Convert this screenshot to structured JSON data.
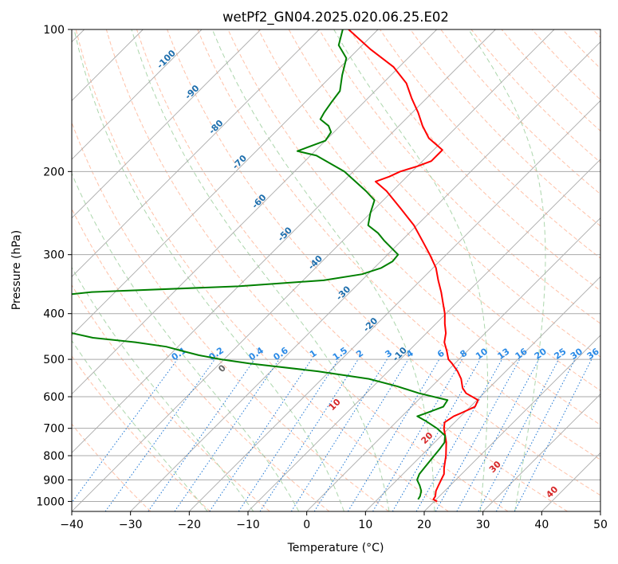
{
  "chart_data": {
    "type": "line",
    "subtype": "skew-t log-p diagram",
    "title": "wetPf2_GN04.2025.020.06.25.E02",
    "xlabel": "Temperature (°C)",
    "ylabel": "Pressure (hPa)",
    "xlim": [
      -40,
      50
    ],
    "ylim": [
      1050,
      100
    ],
    "yscale": "log",
    "x_ticks": [
      "−40",
      "−30",
      "−20",
      "−10",
      "0",
      "10",
      "20",
      "30",
      "40",
      "50"
    ],
    "x_tick_values": [
      -40,
      -30,
      -20,
      -10,
      0,
      10,
      20,
      30,
      40,
      50
    ],
    "y_ticks": [
      "1000",
      "900",
      "800",
      "700",
      "600",
      "500",
      "400",
      "300",
      "200",
      "100"
    ],
    "y_tick_values": [
      1000,
      900,
      800,
      700,
      600,
      500,
      400,
      300,
      200,
      100
    ],
    "grid": true,
    "colors": {
      "temperature": "#ff0000",
      "dewpoint": "#008000",
      "isotherm": "#aaaaaa",
      "dry_adiabat": "#ffa07a",
      "moist_adiabat": "#90c890",
      "mixing_ratio": "#1f77d4",
      "temp_label": "#1f6fad",
      "mixing_label": "#2a8ae6",
      "wetbulb_label": "#d62728",
      "zero_label": "#666666",
      "dry_curve": "#d8c0a8"
    },
    "series": [
      {
        "kind": "temperature",
        "points": [
          [
            1000,
            20.5
          ],
          [
            990,
            19.5
          ],
          [
            975,
            19.3
          ],
          [
            950,
            18.5
          ],
          [
            925,
            18.0
          ],
          [
            900,
            17.5
          ],
          [
            875,
            17.0
          ],
          [
            850,
            16.0
          ],
          [
            800,
            14.2
          ],
          [
            750,
            12.0
          ],
          [
            700,
            9.2
          ],
          [
            680,
            8.3
          ],
          [
            660,
            8.8
          ],
          [
            650,
            9.5
          ],
          [
            630,
            10.8
          ],
          [
            610,
            10.2
          ],
          [
            590,
            7.0
          ],
          [
            575,
            5.5
          ],
          [
            550,
            3.7
          ],
          [
            530,
            1.8
          ],
          [
            510,
            -0.5
          ],
          [
            500,
            -1.8
          ],
          [
            480,
            -3.5
          ],
          [
            460,
            -5.4
          ],
          [
            440,
            -6.7
          ],
          [
            420,
            -8.5
          ],
          [
            400,
            -10.2
          ],
          [
            380,
            -12.3
          ],
          [
            360,
            -14.5
          ],
          [
            340,
            -17.0
          ],
          [
            320,
            -19.5
          ],
          [
            300,
            -22.8
          ],
          [
            280,
            -26.5
          ],
          [
            260,
            -30.5
          ],
          [
            240,
            -35.5
          ],
          [
            220,
            -41.0
          ],
          [
            210,
            -44.5
          ],
          [
            205,
            -43.0
          ],
          [
            200,
            -42.0
          ],
          [
            195,
            -40.0
          ],
          [
            190,
            -38.5
          ],
          [
            180,
            -38.5
          ],
          [
            170,
            -42.8
          ],
          [
            160,
            -46.0
          ],
          [
            150,
            -49.0
          ],
          [
            140,
            -52.5
          ],
          [
            130,
            -56.0
          ],
          [
            120,
            -61.0
          ],
          [
            110,
            -68.0
          ],
          [
            100,
            -75.0
          ]
        ]
      },
      {
        "kind": "dewpoint",
        "points": [
          [
            990,
            16.9
          ],
          [
            975,
            16.7
          ],
          [
            950,
            16.0
          ],
          [
            925,
            14.8
          ],
          [
            900,
            13.4
          ],
          [
            875,
            12.8
          ],
          [
            850,
            12.6
          ],
          [
            800,
            12.2
          ],
          [
            775,
            12.0
          ],
          [
            750,
            11.7
          ],
          [
            725,
            10.6
          ],
          [
            700,
            8.0
          ],
          [
            675,
            4.8
          ],
          [
            660,
            2.6
          ],
          [
            650,
            3.6
          ],
          [
            630,
            5.4
          ],
          [
            610,
            5.0
          ],
          [
            590,
            -1.0
          ],
          [
            570,
            -6.0
          ],
          [
            550,
            -12.0
          ],
          [
            530,
            -22.0
          ],
          [
            510,
            -35.0
          ],
          [
            500,
            -40.5
          ],
          [
            490,
            -45.0
          ],
          [
            480,
            -48.5
          ],
          [
            470,
            -52.0
          ],
          [
            460,
            -58.0
          ],
          [
            450,
            -66.0
          ],
          [
            440,
            -70.3
          ],
          [
            420,
            -74.5
          ],
          [
            400,
            -77.5
          ],
          [
            380,
            -79.0
          ],
          [
            365,
            -78.0
          ],
          [
            360,
            -74.0
          ],
          [
            350,
            -50.0
          ],
          [
            340,
            -36.5
          ],
          [
            330,
            -31.0
          ],
          [
            320,
            -28.8
          ],
          [
            310,
            -28.0
          ],
          [
            300,
            -28.2
          ],
          [
            280,
            -33.0
          ],
          [
            270,
            -35.3
          ],
          [
            260,
            -38.3
          ],
          [
            245,
            -40.0
          ],
          [
            230,
            -41.5
          ],
          [
            220,
            -44.5
          ],
          [
            200,
            -51.5
          ],
          [
            185,
            -59.0
          ],
          [
            181,
            -63.0
          ],
          [
            178,
            -62.0
          ],
          [
            172,
            -60.0
          ],
          [
            165,
            -60.5
          ],
          [
            160,
            -62.0
          ],
          [
            155,
            -64.5
          ],
          [
            150,
            -65.0
          ],
          [
            143,
            -65.5
          ],
          [
            135,
            -66.0
          ],
          [
            125,
            -68.3
          ],
          [
            115,
            -70.5
          ],
          [
            108,
            -74.0
          ],
          [
            100,
            -76.0
          ]
        ]
      }
    ],
    "isotherm_labels": [
      "-100",
      "-90",
      "-80",
      "-70",
      "-60",
      "-50",
      "-40",
      "-30",
      "-20",
      "-10",
      "0",
      "10",
      "20",
      "30",
      "40"
    ],
    "isotherm_label_values": [
      -100,
      -90,
      -80,
      -70,
      -60,
      -50,
      -40,
      -30,
      -20,
      -10,
      0,
      10,
      20,
      30,
      40
    ],
    "mixing_ratio_labels": [
      "0.1",
      "0.2",
      "0.4",
      "0.6",
      "1",
      "1.5",
      "2",
      "3",
      "4",
      "6",
      "8",
      "10",
      "13",
      "16",
      "20",
      "25",
      "30",
      "36"
    ],
    "mixing_ratio_values": [
      0.1,
      0.2,
      0.4,
      0.6,
      1,
      1.5,
      2,
      3,
      4,
      6,
      8,
      10,
      13,
      16,
      20,
      25,
      30,
      36
    ]
  }
}
